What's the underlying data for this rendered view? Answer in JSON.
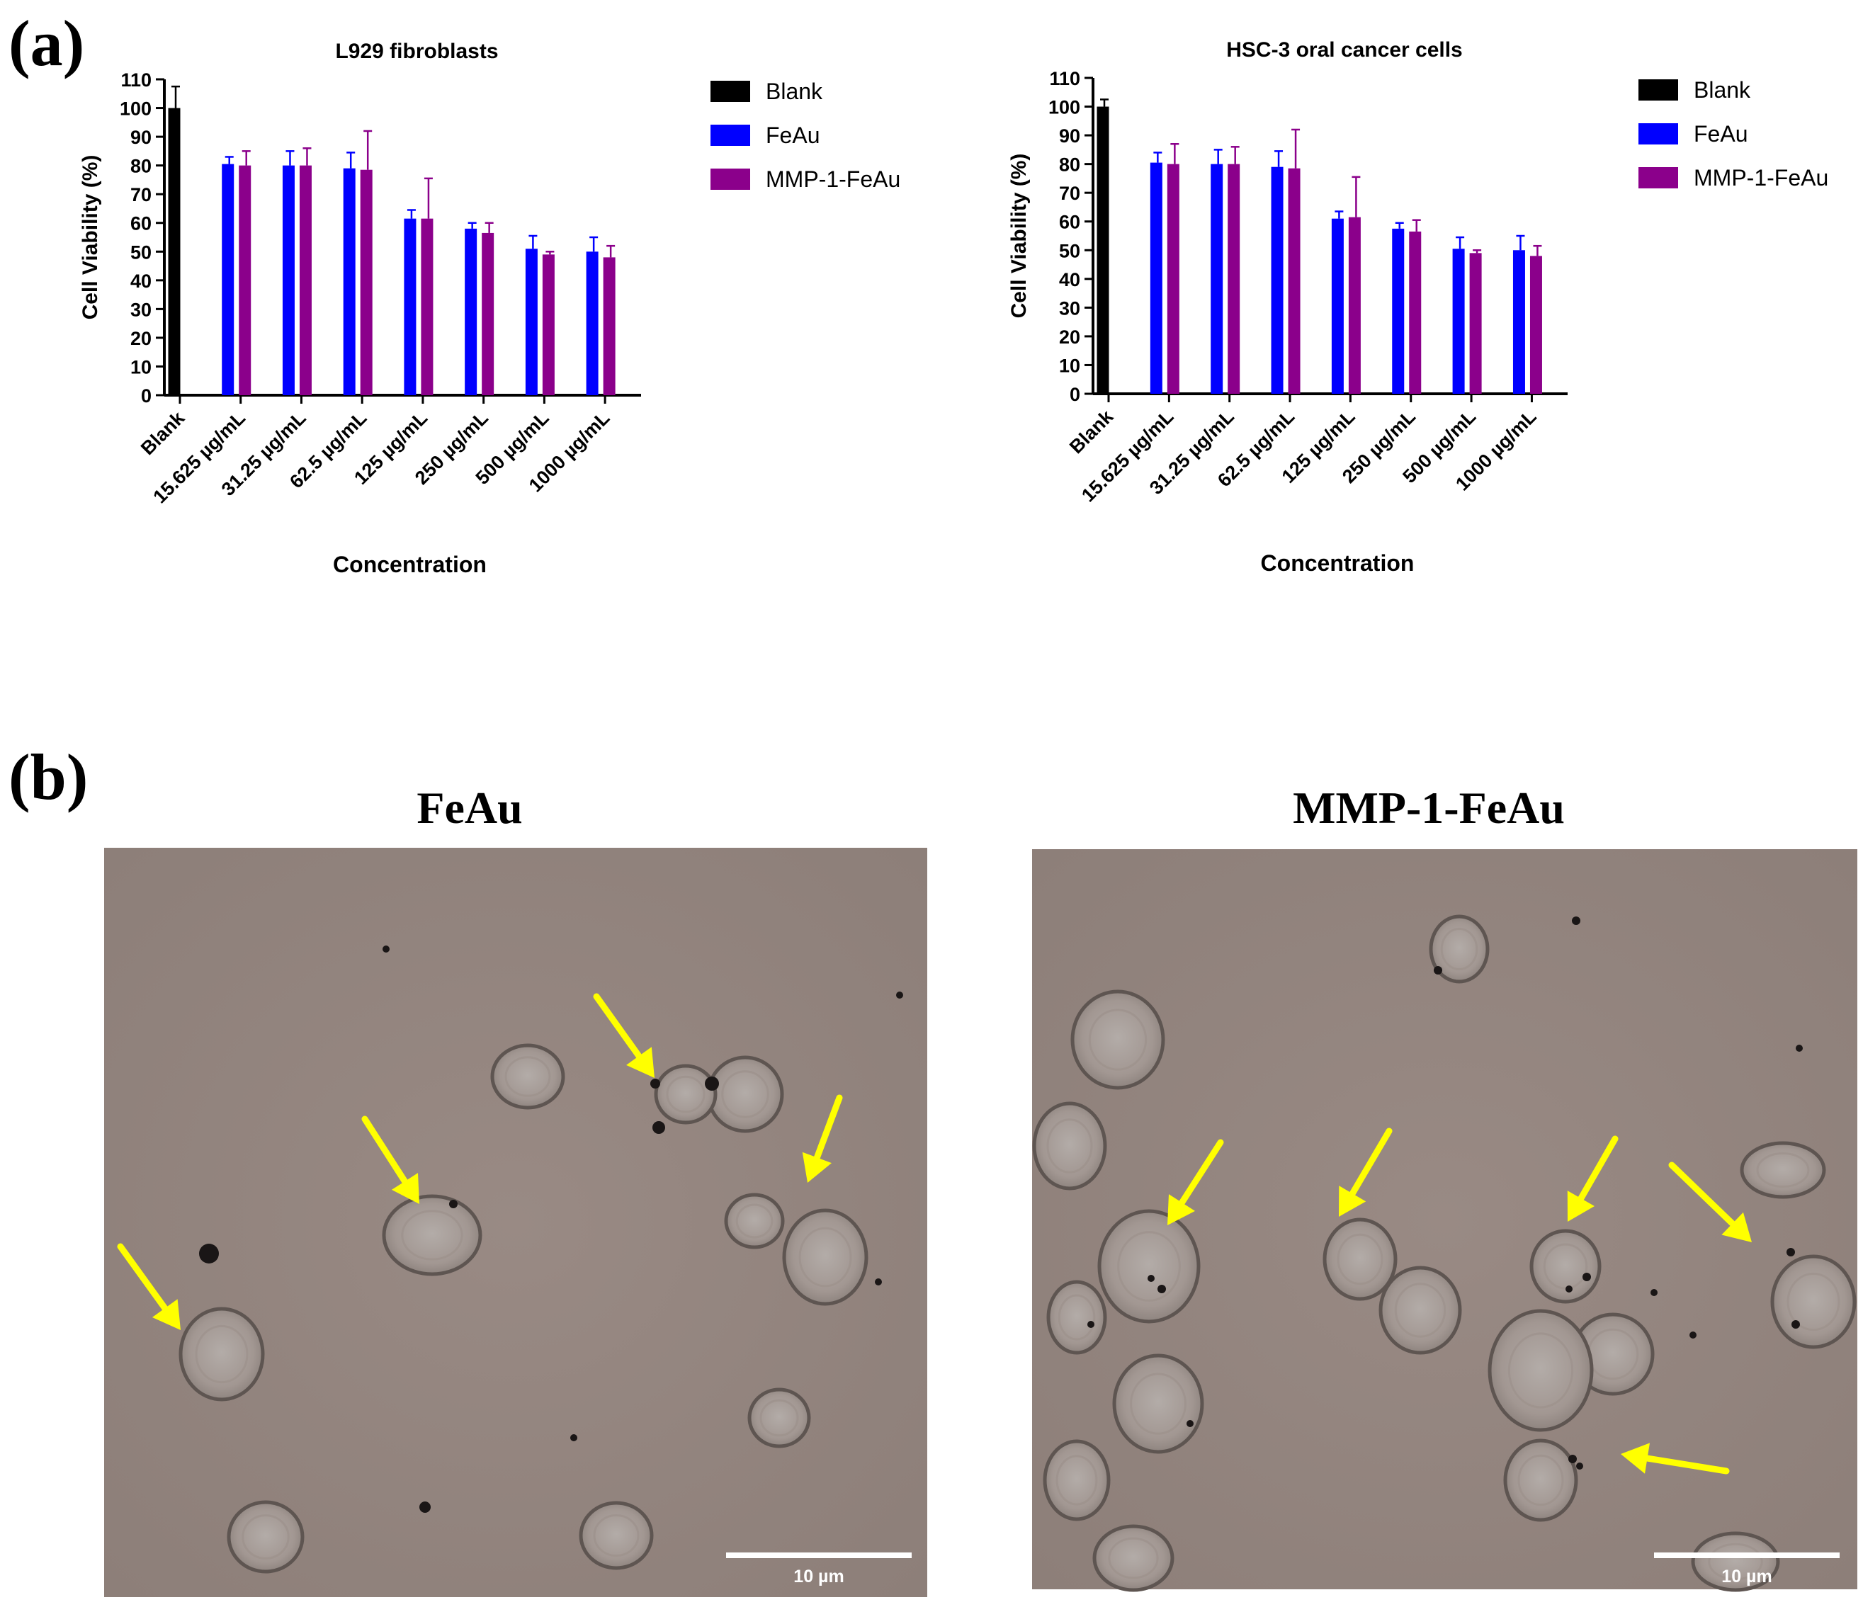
{
  "panel_labels": {
    "a": "(a)",
    "b": "(b)"
  },
  "chart_data": [
    {
      "type": "bar",
      "title": "L929 fibroblasts",
      "xlabel": "Concentration",
      "ylabel": "Cell Viability (%)",
      "ylim": [
        0,
        110
      ],
      "yticks": [
        "0",
        "10",
        "20",
        "30",
        "40",
        "50",
        "60",
        "70",
        "80",
        "90",
        "100",
        "110"
      ],
      "categories": [
        "Blank",
        "15.625 µg/mL",
        "31.25 µg/mL",
        "62.5 µg/mL",
        "125 µg/mL",
        "250 µg/mL",
        "500 µg/mL",
        "1000 µg/mL"
      ],
      "legend_position": "right",
      "grid": false,
      "series": [
        {
          "name": "Blank",
          "color": "#000000",
          "values": [
            100,
            null,
            null,
            null,
            null,
            null,
            null,
            null
          ],
          "errors": [
            7.5,
            null,
            null,
            null,
            null,
            null,
            null,
            null
          ]
        },
        {
          "name": "FeAu",
          "color": "#0000ff",
          "values": [
            null,
            80.5,
            80,
            79,
            61.5,
            58,
            51,
            50
          ],
          "errors": [
            null,
            2.5,
            5,
            5.5,
            3,
            2,
            4.5,
            5
          ]
        },
        {
          "name": "MMP-1-FeAu",
          "color": "#8b008b",
          "values": [
            null,
            80,
            80,
            78.5,
            61.5,
            56.5,
            49,
            48
          ],
          "errors": [
            null,
            5,
            6,
            13.5,
            14,
            3.5,
            1,
            4
          ]
        }
      ]
    },
    {
      "type": "bar",
      "title": "HSC-3 oral cancer cells",
      "xlabel": "Concentration",
      "ylabel": "Cell Viability (%)",
      "ylim": [
        0,
        110
      ],
      "yticks": [
        "0",
        "10",
        "20",
        "30",
        "40",
        "50",
        "60",
        "70",
        "80",
        "90",
        "100",
        "110"
      ],
      "categories": [
        "Blank",
        "15.625 µg/mL",
        "31.25 µg/mL",
        "62.5 µg/mL",
        "125 µg/mL",
        "250 µg/mL",
        "500 µg/mL",
        "1000 µg/mL"
      ],
      "legend_position": "right",
      "grid": false,
      "series": [
        {
          "name": "Blank",
          "color": "#000000",
          "values": [
            100,
            null,
            null,
            null,
            null,
            null,
            null,
            null
          ],
          "errors": [
            2.5,
            null,
            null,
            null,
            null,
            null,
            null,
            null
          ]
        },
        {
          "name": "FeAu",
          "color": "#0000ff",
          "values": [
            null,
            80.5,
            80,
            79,
            61,
            57.5,
            50.5,
            50
          ],
          "errors": [
            null,
            3.5,
            5,
            5.5,
            2.5,
            2,
            4,
            5
          ]
        },
        {
          "name": "MMP-1-FeAu",
          "color": "#8b008b",
          "values": [
            null,
            80,
            80,
            78.5,
            61.5,
            56.5,
            49,
            48
          ],
          "errors": [
            null,
            7,
            6,
            13.5,
            14,
            4,
            1,
            3.5
          ]
        }
      ]
    }
  ],
  "micrographs": [
    {
      "title": "FeAu",
      "scale_bar": "10 µm",
      "arrow_color": "#ffff00"
    },
    {
      "title": "MMP-1-FeAu",
      "scale_bar": "10 µm",
      "arrow_color": "#ffff00"
    }
  ]
}
